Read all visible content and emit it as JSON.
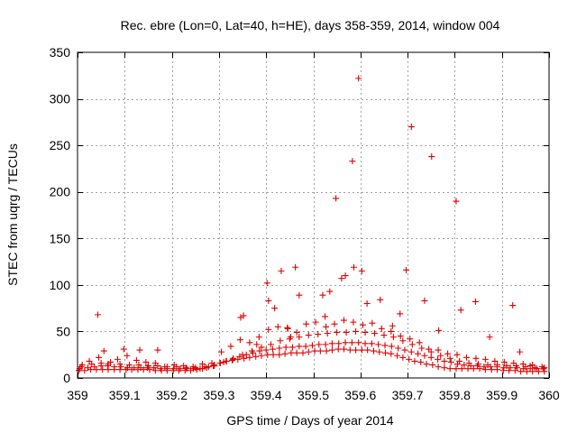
{
  "chart_data": {
    "type": "scatter",
    "title": "Rec. ebre (Lon=0, Lat=40, h=HE), days 358-359, 2014, window 004",
    "xlabel": "GPS time / Days of year 2014",
    "ylabel": "STEC from uqrg / TECUs",
    "xlim": [
      359,
      360
    ],
    "ylim": [
      0,
      350
    ],
    "xticks": [
      359,
      359.1,
      359.2,
      359.3,
      359.4,
      359.5,
      359.6,
      359.7,
      359.8,
      359.9,
      360
    ],
    "xtick_labels": [
      "359",
      "359.1",
      "359.2",
      "359.3",
      "359.4",
      "359.5",
      "359.6",
      "359.7",
      "359.8",
      "359.9",
      "360"
    ],
    "yticks": [
      0,
      50,
      100,
      150,
      200,
      250,
      300,
      350
    ],
    "ytick_labels": [
      "0",
      "50",
      "100",
      "150",
      "200",
      "250",
      "300",
      "350"
    ],
    "grid": true,
    "marker": "+",
    "color": "#e00000",
    "series": [
      {
        "x": [
          359.003,
          359.015,
          359.028,
          359.04,
          359.053,
          359.065,
          359.078,
          359.09,
          359.103,
          359.115,
          359.128,
          359.14,
          359.153,
          359.165,
          359.178,
          359.19,
          359.203,
          359.215,
          359.228,
          359.24,
          359.253,
          359.265,
          359.278,
          359.29,
          359.303,
          359.315,
          359.328,
          359.34,
          359.353,
          359.365,
          359.378,
          359.39,
          359.403,
          359.415,
          359.428,
          359.44,
          359.453,
          359.465,
          359.478,
          359.49,
          359.503,
          359.515,
          359.528,
          359.54,
          359.553,
          359.565,
          359.578,
          359.59,
          359.603,
          359.615,
          359.628,
          359.64,
          359.653,
          359.665,
          359.678,
          359.69,
          359.703,
          359.715,
          359.728,
          359.74,
          359.753,
          359.765,
          359.778,
          359.79,
          359.803,
          359.815,
          359.828,
          359.84,
          359.853,
          359.865,
          359.878,
          359.89,
          359.903,
          359.915,
          359.928,
          359.94,
          359.953,
          359.965,
          359.978,
          359.99,
          359.008,
          359.022,
          359.036,
          359.05,
          359.064,
          359.078,
          359.092,
          359.106,
          359.12,
          359.134,
          359.148,
          359.162,
          359.176,
          359.19,
          359.204,
          359.218,
          359.232,
          359.246,
          359.26,
          359.274,
          359.288,
          359.302,
          359.316,
          359.33,
          359.344,
          359.358,
          359.372,
          359.386,
          359.4,
          359.414,
          359.428,
          359.442,
          359.456,
          359.47,
          359.484,
          359.498,
          359.512,
          359.526,
          359.54,
          359.554,
          359.568,
          359.582,
          359.596,
          359.61,
          359.624,
          359.638,
          359.652,
          359.666,
          359.68,
          359.694,
          359.708,
          359.722,
          359.736,
          359.75,
          359.764,
          359.778,
          359.792,
          359.806,
          359.82,
          359.834,
          359.848,
          359.862,
          359.876,
          359.89,
          359.904,
          359.918,
          359.932,
          359.946,
          359.96,
          359.974,
          359.988,
          359.01,
          359.03,
          359.05,
          359.07,
          359.09,
          359.11,
          359.13,
          359.15,
          359.17,
          359.19,
          359.21,
          359.23,
          359.25,
          359.27,
          359.29,
          359.31,
          359.33,
          359.35,
          359.37,
          359.39,
          359.41,
          359.43,
          359.45,
          359.47,
          359.49,
          359.51,
          359.53,
          359.55,
          359.57,
          359.59,
          359.61,
          359.63,
          359.65,
          359.67,
          359.69,
          359.71,
          359.73,
          359.75,
          359.77,
          359.79,
          359.81,
          359.83,
          359.85,
          359.87,
          359.89,
          359.91,
          359.93,
          359.95,
          359.97,
          359.99,
          359.005,
          359.025,
          359.045,
          359.065,
          359.085,
          359.105,
          359.125,
          359.145,
          359.165,
          359.185,
          359.205,
          359.225,
          359.245,
          359.265,
          359.285,
          359.305,
          359.325,
          359.345,
          359.365,
          359.385,
          359.405,
          359.425,
          359.445,
          359.465,
          359.485,
          359.505,
          359.525,
          359.545,
          359.565,
          359.585,
          359.605,
          359.625,
          359.645,
          359.665,
          359.685,
          359.705,
          359.725,
          359.745,
          359.765,
          359.785,
          359.805,
          359.825,
          359.845,
          359.865,
          359.885,
          359.905,
          359.925,
          359.945,
          359.965,
          359.985,
          359.043,
          359.056,
          359.098,
          359.132,
          359.17,
          359.346,
          359.352,
          359.38,
          359.402,
          359.405,
          359.418,
          359.432,
          359.446,
          359.452,
          359.462,
          359.47,
          359.52,
          359.527,
          359.535,
          359.548,
          359.56,
          359.568,
          359.583,
          359.586,
          359.596,
          359.603,
          359.614,
          359.642,
          359.668,
          359.684,
          359.697,
          359.708,
          359.736,
          359.751,
          359.766,
          359.803,
          359.813,
          359.844,
          359.874,
          359.923,
          359.938,
          359.96
        ],
        "y": [
          8,
          8,
          9,
          9,
          9,
          9,
          9,
          9,
          9,
          9,
          9,
          9,
          9,
          8,
          8,
          8,
          8,
          8,
          8,
          8,
          9,
          10,
          12,
          14,
          16,
          18,
          19,
          20,
          21,
          22,
          23,
          24,
          25,
          25,
          25,
          26,
          27,
          27,
          27,
          28,
          29,
          29,
          29,
          30,
          31,
          31,
          30,
          30,
          30,
          30,
          29,
          28,
          27,
          26,
          24,
          22,
          20,
          18,
          17,
          15,
          14,
          12,
          11,
          10,
          10,
          10,
          10,
          10,
          10,
          9,
          9,
          9,
          8,
          8,
          8,
          7,
          7,
          7,
          7,
          7,
          12,
          11,
          12,
          13,
          13,
          12,
          12,
          11,
          11,
          11,
          11,
          11,
          10,
          10,
          10,
          10,
          10,
          10,
          10,
          11,
          13,
          16,
          18,
          20,
          23,
          25,
          27,
          29,
          30,
          31,
          32,
          33,
          33,
          34,
          34,
          35,
          36,
          36,
          37,
          37,
          38,
          38,
          38,
          37,
          37,
          36,
          35,
          34,
          32,
          30,
          28,
          26,
          24,
          22,
          20,
          18,
          17,
          15,
          14,
          13,
          13,
          12,
          12,
          12,
          11,
          11,
          11,
          10,
          10,
          10,
          10,
          14,
          15,
          16,
          17,
          15,
          14,
          14,
          13,
          13,
          12,
          12,
          11,
          11,
          12,
          13,
          17,
          21,
          25,
          29,
          33,
          36,
          40,
          42,
          44,
          46,
          47,
          48,
          49,
          49,
          50,
          49,
          48,
          46,
          44,
          40,
          36,
          32,
          28,
          24,
          21,
          18,
          16,
          15,
          14,
          14,
          13,
          13,
          12,
          11,
          11,
          10,
          18,
          22,
          15,
          20,
          24,
          19,
          17,
          16,
          12,
          14,
          13,
          12,
          15,
          16,
          28,
          34,
          41,
          38,
          44,
          52,
          55,
          54,
          49,
          58,
          60,
          66,
          58,
          62,
          60,
          57,
          59,
          53,
          50,
          45,
          42,
          38,
          31,
          30,
          26,
          25,
          22,
          21,
          20,
          18,
          17,
          16,
          15,
          14,
          12,
          68,
          29,
          31,
          30,
          30,
          65,
          67,
          36,
          102,
          83,
          75,
          115,
          53,
          44,
          119,
          89,
          89,
          55,
          93,
          193,
          107,
          110,
          233,
          119,
          322,
          115,
          80,
          84,
          56,
          69,
          116,
          270,
          83,
          238,
          51,
          190,
          73,
          82,
          44,
          78,
          28,
          13
        ]
      }
    ]
  }
}
